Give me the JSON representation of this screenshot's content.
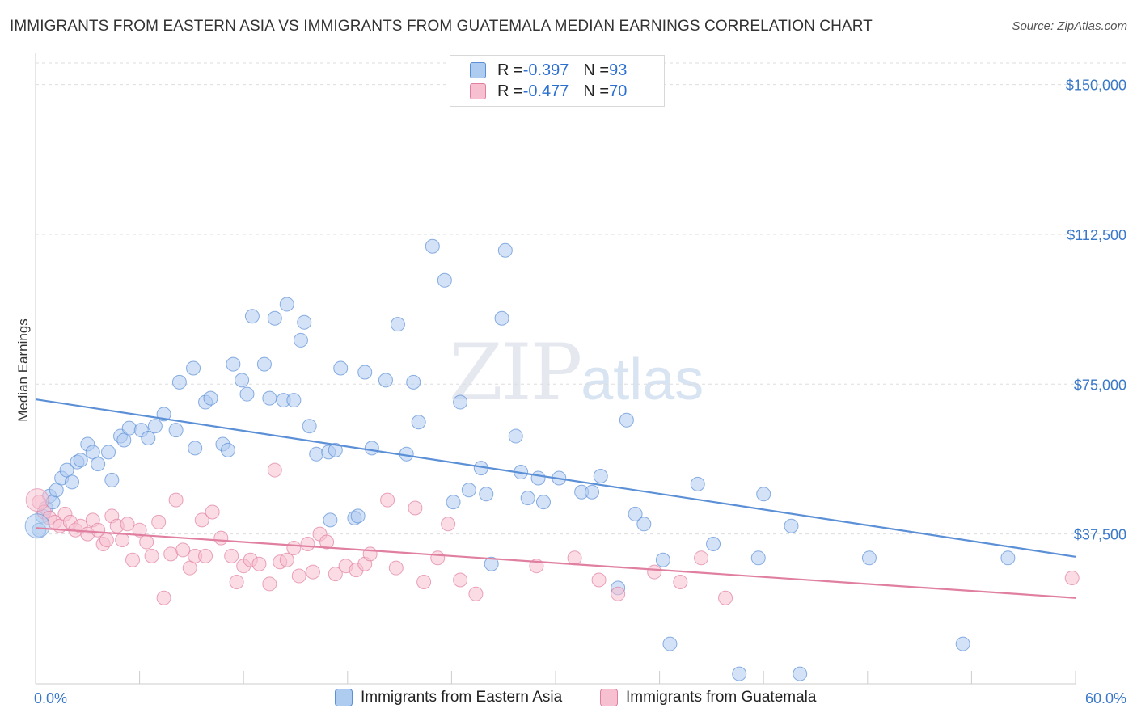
{
  "title": "IMMIGRANTS FROM EASTERN ASIA VS IMMIGRANTS FROM GUATEMALA MEDIAN EARNINGS CORRELATION CHART",
  "source": "Source: ZipAtlas.com",
  "watermark": {
    "zip": "ZIP",
    "atlas": "atlas"
  },
  "legend": {
    "rows": [
      {
        "r_label": "R = ",
        "r_value": "-0.397",
        "n_label": "N = ",
        "n_value": "93",
        "color": "#aecbf0",
        "border": "#5b8fd6"
      },
      {
        "r_label": "R = ",
        "r_value": "-0.477",
        "n_label": "N = ",
        "n_value": "70",
        "color": "#f7c0d0",
        "border": "#e07fa0"
      }
    ]
  },
  "bottom_legend": [
    {
      "label": "Immigrants from Eastern Asia",
      "color": "#aecbf0",
      "border": "#5b8fd6"
    },
    {
      "label": "Immigrants from Guatemala",
      "color": "#f7c0d0",
      "border": "#e07fa0"
    }
  ],
  "chart_data": {
    "type": "scatter",
    "title": "IMMIGRANTS FROM EASTERN ASIA VS IMMIGRANTS FROM GUATEMALA MEDIAN EARNINGS CORRELATION CHART",
    "xlabel": "",
    "ylabel": "Median Earnings",
    "xlim": [
      0,
      60
    ],
    "ylim": [
      0,
      157000
    ],
    "x_tick_labels": [
      "0.0%",
      "60.0%"
    ],
    "y_ticks": [
      37500,
      75000,
      112500,
      150000
    ],
    "y_tick_labels": [
      "$37,500",
      "$75,000",
      "$112,500",
      "$150,000"
    ],
    "grid": true,
    "legend_position": "top-center",
    "series": [
      {
        "name": "Immigrants from Eastern Asia",
        "color": "#5b8fd6",
        "fill": "#aecbf0",
        "trend": {
          "x": [
            0,
            60
          ],
          "y": [
            71200,
            31800
          ]
        },
        "x": [
          0.2,
          0.4,
          0.6,
          0.8,
          1.0,
          1.2,
          1.5,
          1.8,
          2.1,
          2.4,
          2.6,
          3.0,
          3.3,
          3.6,
          4.2,
          4.4,
          4.9,
          5.1,
          5.4,
          6.1,
          6.5,
          6.9,
          7.4,
          8.1,
          8.3,
          9.1,
          9.2,
          9.8,
          10.1,
          10.8,
          11.1,
          11.4,
          11.9,
          12.2,
          12.5,
          13.2,
          13.5,
          13.8,
          14.3,
          14.5,
          14.9,
          15.3,
          15.5,
          15.8,
          16.2,
          16.9,
          17.0,
          17.3,
          17.6,
          18.4,
          18.6,
          19.0,
          19.4,
          20.2,
          20.9,
          21.4,
          21.8,
          22.1,
          22.9,
          23.6,
          24.1,
          24.5,
          25.0,
          25.7,
          26.0,
          26.3,
          26.9,
          27.1,
          27.7,
          28.0,
          28.4,
          29.0,
          29.3,
          30.2,
          31.5,
          32.1,
          32.6,
          33.6,
          34.1,
          34.6,
          35.1,
          36.2,
          36.6,
          38.2,
          39.1,
          40.6,
          41.7,
          42.0,
          43.6,
          44.1,
          48.1,
          53.5,
          56.1
        ],
        "y": [
          38500,
          42000,
          44000,
          47000,
          45500,
          48500,
          51500,
          53500,
          50500,
          55500,
          56000,
          60000,
          58000,
          55000,
          58000,
          51000,
          62000,
          61000,
          64000,
          63500,
          61500,
          64500,
          67500,
          63500,
          75500,
          79000,
          59000,
          70500,
          71500,
          60000,
          58500,
          80000,
          76000,
          72500,
          92000,
          80000,
          71500,
          91500,
          71000,
          95000,
          71000,
          86000,
          90500,
          64500,
          57500,
          58000,
          41000,
          58500,
          79000,
          41500,
          42000,
          78000,
          59000,
          76000,
          90000,
          57500,
          75500,
          65500,
          109500,
          101000,
          45500,
          70500,
          48500,
          54000,
          47500,
          30000,
          91500,
          108500,
          62000,
          53000,
          46500,
          51500,
          45500,
          51500,
          48000,
          48000,
          52000,
          24000,
          66000,
          42500,
          40000,
          31000,
          10000,
          50000,
          35000,
          2500,
          31500,
          47500,
          39500,
          2500,
          31500,
          10000,
          31500
        ]
      },
      {
        "name": "Immigrants from Guatemala",
        "color": "#e07fa0",
        "fill": "#f7c0d0",
        "trend": {
          "x": [
            0,
            60
          ],
          "y": [
            39000,
            21500
          ]
        },
        "x": [
          0.2,
          0.5,
          0.8,
          1.1,
          1.4,
          1.7,
          2.0,
          2.3,
          2.6,
          3.0,
          3.3,
          3.6,
          3.9,
          4.1,
          4.4,
          4.7,
          5.0,
          5.3,
          5.6,
          6.0,
          6.4,
          6.7,
          7.1,
          7.4,
          7.8,
          8.1,
          8.5,
          8.9,
          9.2,
          9.6,
          9.8,
          10.2,
          10.7,
          11.3,
          11.6,
          12.0,
          12.4,
          12.9,
          13.5,
          13.8,
          14.1,
          14.5,
          14.9,
          15.2,
          15.7,
          16.0,
          16.4,
          16.8,
          17.3,
          17.9,
          18.5,
          19.0,
          19.3,
          20.3,
          20.8,
          21.9,
          22.4,
          23.2,
          23.8,
          24.5,
          25.4,
          28.9,
          31.1,
          32.5,
          33.6,
          35.7,
          37.2,
          38.4,
          39.8,
          59.8
        ],
        "y": [
          45500,
          43000,
          41500,
          40500,
          39500,
          42500,
          40500,
          38500,
          39500,
          37500,
          41000,
          38500,
          35000,
          36000,
          42000,
          39500,
          36000,
          40000,
          31000,
          38500,
          35500,
          32000,
          40500,
          21500,
          32500,
          46000,
          33500,
          29000,
          32000,
          41000,
          32000,
          43000,
          36500,
          32000,
          25500,
          29500,
          31000,
          30000,
          25000,
          53500,
          30500,
          31000,
          34000,
          27000,
          35000,
          28000,
          37500,
          35500,
          27500,
          29500,
          28500,
          30000,
          32500,
          46000,
          29000,
          44000,
          25500,
          31500,
          40000,
          26000,
          22500,
          29500,
          31500,
          26000,
          22500,
          28000,
          25500,
          31500,
          21500,
          26500
        ]
      }
    ]
  }
}
